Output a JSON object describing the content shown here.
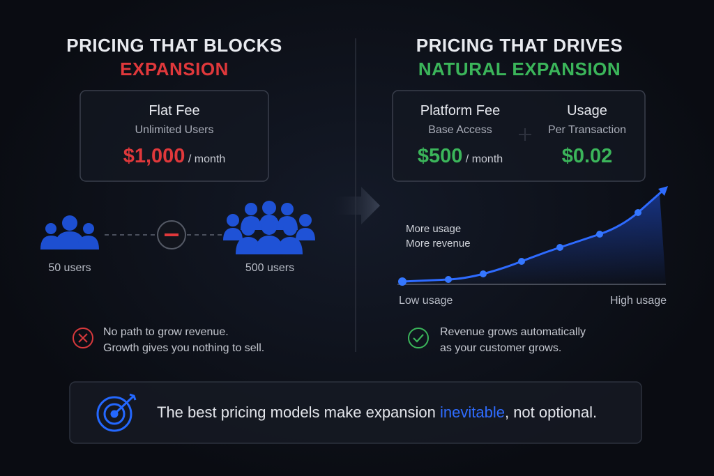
{
  "left": {
    "title_line1": "PRICING THAT BLOCKS",
    "title_line2": "EXPANSION",
    "card": {
      "name": "Flat Fee",
      "subtitle": "Unlimited Users",
      "price": "$1,000",
      "unit": "/ month"
    },
    "users_small": "50 users",
    "users_large": "500 users",
    "note": [
      "No path to grow revenue.",
      "Growth gives you nothing to sell."
    ]
  },
  "right": {
    "title_line1": "PRICING THAT DRIVES",
    "title_line2": "NATURAL EXPANSION",
    "card": [
      {
        "name": "Platform Fee",
        "subtitle": "Base Access",
        "price": "$500",
        "unit": "/ month"
      },
      {
        "name": "Usage",
        "subtitle": "Per Transaction",
        "price": "$0.02"
      }
    ],
    "annotation": [
      "More usage",
      "More revenue"
    ],
    "x_low": "Low usage",
    "x_high": "High usage",
    "note": [
      "Revenue grows automatically",
      "as your customer grows."
    ]
  },
  "footer": {
    "before": "The best pricing models make expansion",
    "highlight": "inevitable",
    "after": ", not optional."
  }
}
